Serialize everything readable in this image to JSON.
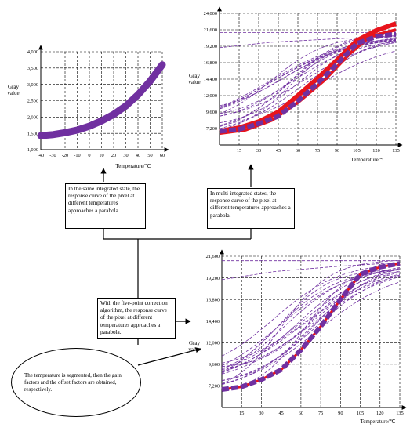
{
  "charts": [
    {
      "id": "single",
      "type": "line",
      "ylabel": [
        "Gray",
        "value"
      ],
      "xlabel": "Temperature/℃",
      "x_ticks": [
        "-40",
        "-30",
        "-20",
        "-10",
        "0",
        "10",
        "20",
        "30",
        "40",
        "50",
        "60"
      ],
      "y_ticks": [
        "1,000",
        "1,500",
        "2,000",
        "2,500",
        "3,000",
        "3,500",
        "4,000"
      ],
      "xlim": [
        -40,
        60
      ],
      "ylim": [
        1000,
        4000
      ],
      "series_color": "#7030a0",
      "curve": {
        "x": [
          -40,
          -30,
          -20,
          -10,
          0,
          10,
          20,
          30,
          40,
          50,
          60
        ],
        "y": [
          1430,
          1460,
          1520,
          1600,
          1720,
          1880,
          2080,
          2340,
          2680,
          3100,
          3600
        ]
      }
    },
    {
      "id": "multi",
      "type": "line",
      "ylabel": [
        "Gray",
        "value"
      ],
      "xlabel": "Temperature/℃",
      "x_ticks": [
        "15",
        "30",
        "45",
        "60",
        "75",
        "90",
        "105",
        "120",
        "135"
      ],
      "y_ticks": [
        "7,200",
        "9,600",
        "12,000",
        "14,400",
        "16,800",
        "19,200",
        "21,600",
        "24,000"
      ],
      "xlim": [
        0,
        135
      ],
      "ylim": [
        4800,
        24000
      ],
      "colors": {
        "thick_red": "#e8141c",
        "purple": "#7030a0"
      }
    },
    {
      "id": "five-point",
      "type": "line",
      "ylabel": [
        "Gray",
        "value"
      ],
      "xlabel": "Temperature/℃",
      "x_ticks": [
        "15",
        "30",
        "45",
        "60",
        "75",
        "90",
        "105",
        "120",
        "135"
      ],
      "y_ticks": [
        "7,200",
        "9,600",
        "12,000",
        "14,400",
        "16,800",
        "19,200",
        "21,600"
      ],
      "xlim": [
        0,
        135
      ],
      "ylim": [
        4800,
        21600
      ],
      "colors": {
        "thick_red": "#e8141c",
        "purple": "#7030a0"
      }
    }
  ],
  "boxes": {
    "single_note": "In the same integrated state, the response curve of the pixel at different temperatures approaches a parabola.",
    "multi_note": "In multi-integrated states, the response curve of the pixel at different temperatures approaches a parabola.",
    "five_point_note": "With the five-point correction algorithm, the response curve of the pixel at different temperatures approaches a parabola.",
    "segment_note": "The temperature is segmented, then the gain factors and the offset factors are obtained, respectively."
  }
}
